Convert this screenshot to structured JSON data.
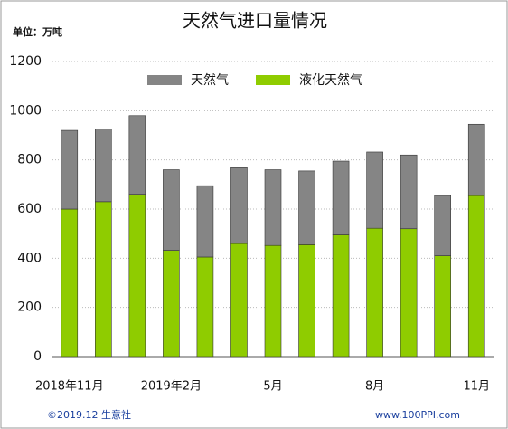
{
  "chart_data": {
    "type": "stacked-bar",
    "title": "天然气进口量情况",
    "unit_label": "单位：万吨",
    "categories": [
      "2018年11月",
      null,
      null,
      "2019年2月",
      null,
      null,
      "5月",
      null,
      null,
      "8月",
      null,
      null,
      "11月"
    ],
    "series": [
      {
        "name": "天然气",
        "color": "#858585",
        "values": [
          320,
          295,
          320,
          328,
          290,
          308,
          308,
          300,
          300,
          310,
          300,
          245,
          290
        ]
      },
      {
        "name": "液化天然气",
        "color": "#8fcc00",
        "values": [
          600,
          630,
          660,
          432,
          405,
          460,
          452,
          455,
          495,
          522,
          520,
          410,
          655
        ]
      }
    ],
    "ylim": [
      0,
      1200
    ],
    "yticks": [
      0,
      200,
      400,
      600,
      800,
      1000,
      1200
    ],
    "grid": true,
    "footer_left": "©2019.12 生意社",
    "footer_right": "www.100PPI.com"
  }
}
